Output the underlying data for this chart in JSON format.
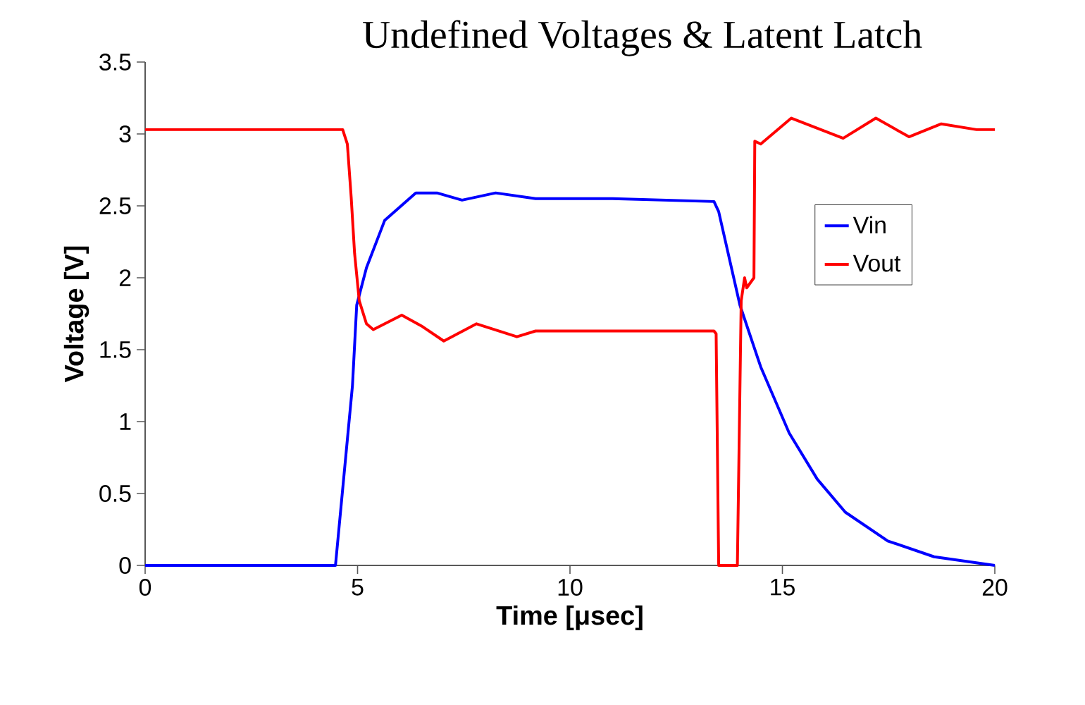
{
  "chart_data": {
    "type": "line",
    "title": "Undefined Voltages & Latent Latch",
    "xlabel": "Time [μsec]",
    "ylabel": "Voltage [V]",
    "xlim": [
      0,
      20
    ],
    "ylim": [
      0,
      3.5
    ],
    "xticks": [
      0,
      5,
      10,
      15,
      20
    ],
    "yticks": [
      0,
      0.5,
      1,
      1.5,
      2,
      2.5,
      3,
      3.5
    ],
    "grid": false,
    "legend": "right",
    "marker": "none",
    "line_style": "solid",
    "series": [
      {
        "name": "Vin",
        "color": "#0000ff",
        "x": [
          0,
          4.48,
          4.88,
          4.98,
          5.21,
          5.64,
          6.37,
          6.87,
          7.46,
          8.25,
          9.19,
          11,
          13.39,
          13.5,
          14.0,
          14.49,
          15.16,
          15.82,
          16.48,
          17.48,
          18.57,
          20
        ],
        "values": [
          0,
          0,
          1.25,
          1.81,
          2.07,
          2.4,
          2.59,
          2.59,
          2.54,
          2.59,
          2.55,
          2.55,
          2.53,
          2.46,
          1.81,
          1.38,
          0.92,
          0.6,
          0.37,
          0.17,
          0.06,
          0
        ]
      },
      {
        "name": "Vout",
        "color": "#ff0000",
        "x": [
          0,
          4.65,
          4.76,
          4.85,
          4.93,
          5.04,
          5.21,
          5.37,
          6.04,
          6.53,
          7.03,
          7.8,
          8.75,
          9.19,
          11,
          13.39,
          13.44,
          13.5,
          13.94,
          14.03,
          14.11,
          14.16,
          14.33,
          14.35,
          14.49,
          15.21,
          16.43,
          17.2,
          17.98,
          18.74,
          19.57,
          20
        ],
        "values": [
          3.03,
          3.03,
          2.93,
          2.56,
          2.17,
          1.84,
          1.68,
          1.64,
          1.74,
          1.66,
          1.56,
          1.68,
          1.59,
          1.63,
          1.63,
          1.63,
          1.61,
          0,
          0,
          1.84,
          2.0,
          1.93,
          2.0,
          2.95,
          2.93,
          3.11,
          2.97,
          3.11,
          2.98,
          3.07,
          3.03,
          3.03
        ]
      }
    ]
  }
}
